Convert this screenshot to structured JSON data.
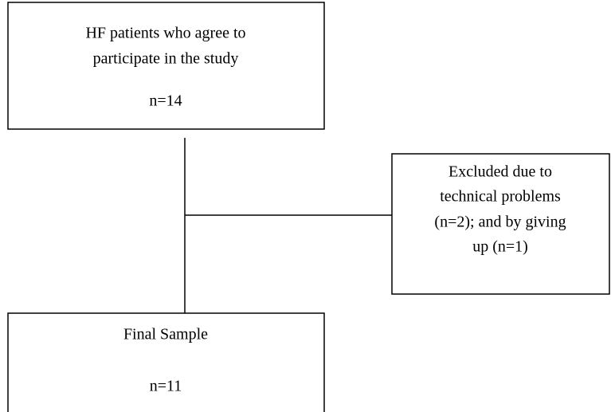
{
  "nodes": [
    {
      "label": [
        "HF patients who agree to",
        "participate in the study"
      ],
      "count": "n=14"
    },
    {
      "label": [
        "Excluded due to",
        "technical problems",
        "(n=2); and by giving",
        "up (n=1)"
      ]
    },
    {
      "label": [
        "Final Sample"
      ],
      "count": "n=11"
    }
  ]
}
